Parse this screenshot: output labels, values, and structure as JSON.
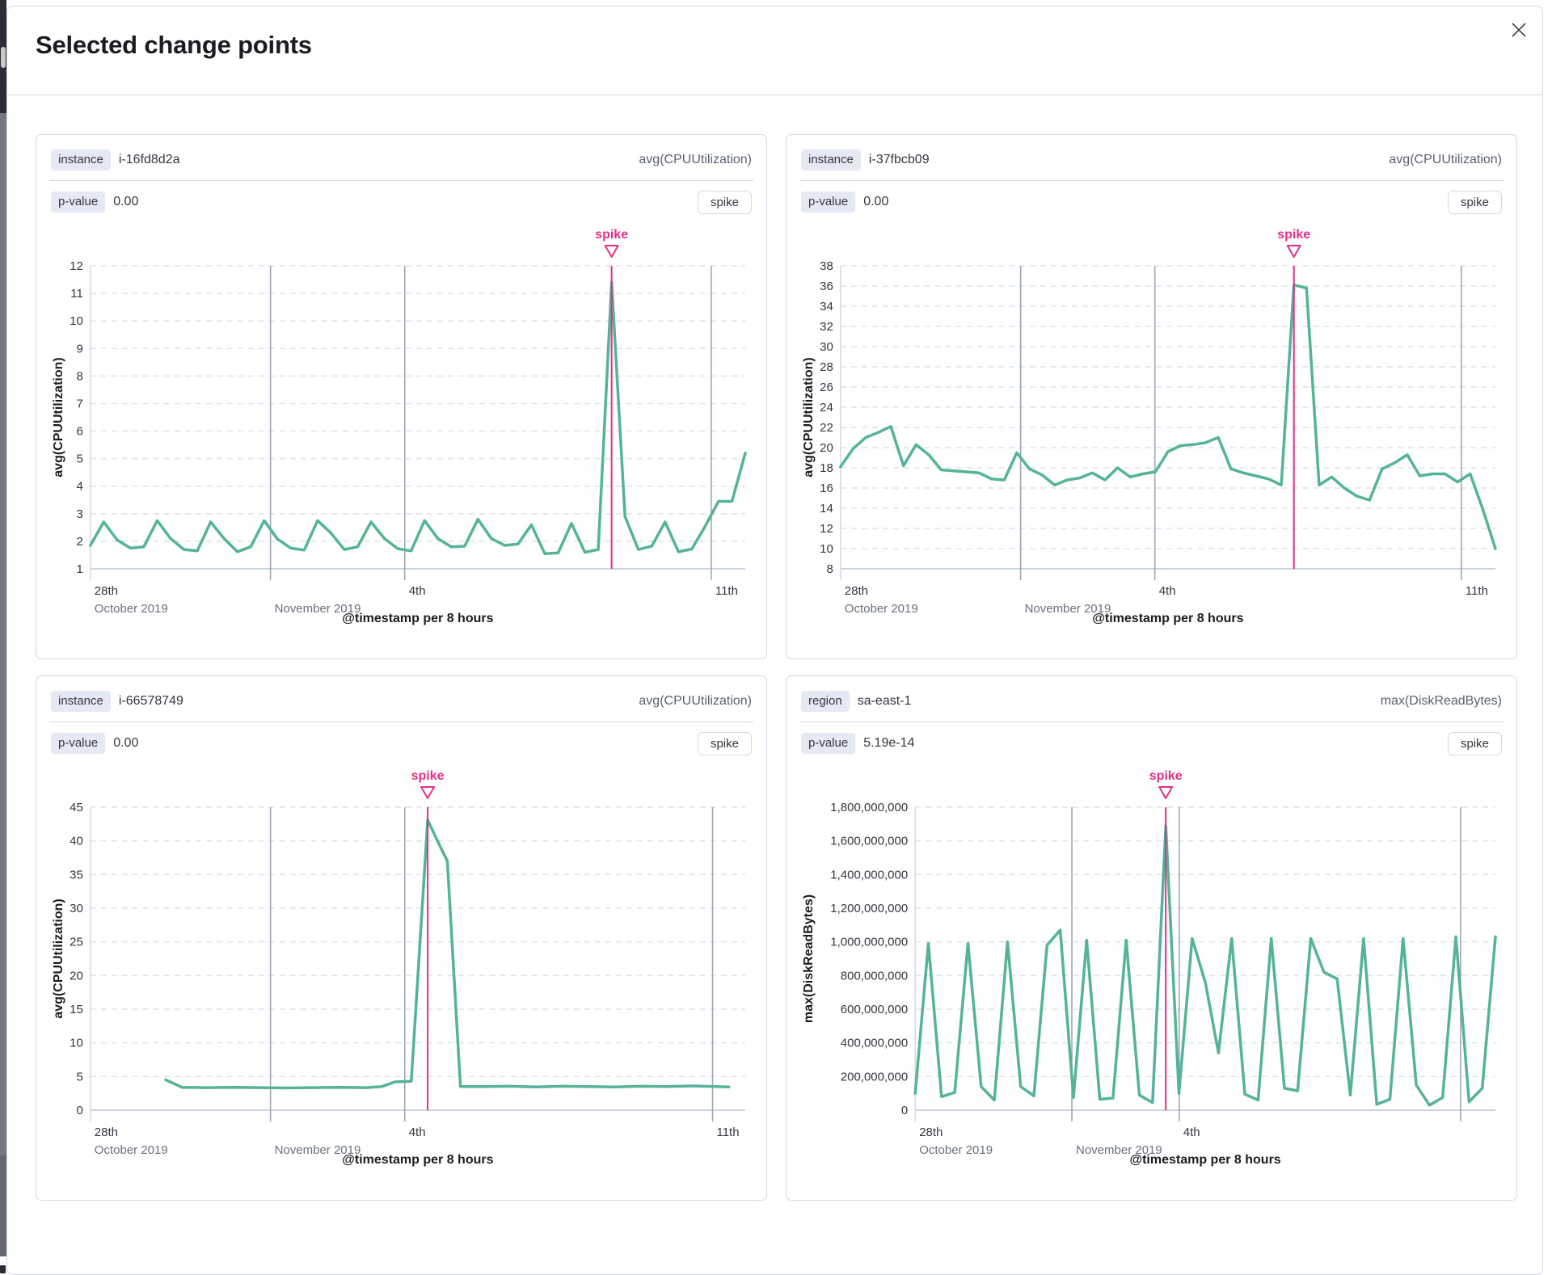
{
  "modal": {
    "title": "Selected change points"
  },
  "colors": {
    "line_green": "#54B399",
    "spike_pink": "#E2308A",
    "panel_border": "#D3DAE6",
    "badge_bg": "#E4E9F4",
    "text_dark": "#343741",
    "text_subdued": "#69707D",
    "gridline_dashed": "#dde2ec",
    "gridline_date": "#9aa1af",
    "gridline_edge": "#d3dae6",
    "baseline": "#cdd4e0"
  },
  "panels": [
    {
      "badge": "instance",
      "badge_value": "i-16fd8d2a",
      "metric": "avg(CPUUtilization)",
      "p_label": "p-value",
      "p_value": "0.00",
      "action": "spike",
      "chart_data": {
        "type": "line",
        "xlabel": "@timestamp per 8 hours",
        "ylabel": "avg(CPUUtilization)",
        "ylim": [
          1,
          12
        ],
        "yticks": [
          1,
          2,
          3,
          4,
          5,
          6,
          7,
          8,
          9,
          10,
          11,
          12
        ],
        "ytick_labels": [
          "1",
          "2",
          "3",
          "4",
          "5",
          "6",
          "7",
          "8",
          "9",
          "10",
          "11",
          "12"
        ],
        "x_axis": [
          {
            "x": 0,
            "label": "28th",
            "sublabel": "October 2019",
            "full_line": true,
            "edge": true
          },
          {
            "x": 0.275,
            "label": "",
            "sublabel": "November 2019",
            "full_line": true,
            "edge": false
          },
          {
            "x": 0.48,
            "label": "4th",
            "sublabel": "",
            "full_line": true,
            "edge": false
          },
          {
            "x": 0.948,
            "label": "11th",
            "sublabel": "",
            "full_line": true,
            "edge": false
          }
        ],
        "spike_annotation": "spike",
        "spike_index": 39,
        "values": [
          1.85,
          2.7,
          2.05,
          1.75,
          1.8,
          2.75,
          2.1,
          1.7,
          1.65,
          2.7,
          2.1,
          1.62,
          1.8,
          2.75,
          2.08,
          1.75,
          1.68,
          2.75,
          2.3,
          1.7,
          1.8,
          2.7,
          2.1,
          1.73,
          1.65,
          2.75,
          2.1,
          1.8,
          1.82,
          2.8,
          2.1,
          1.85,
          1.9,
          2.6,
          1.55,
          1.58,
          2.65,
          1.6,
          1.7,
          11.4,
          2.9,
          1.7,
          1.82,
          2.7,
          1.62,
          1.72,
          2.55,
          3.45,
          3.45,
          5.2
        ]
      }
    },
    {
      "badge": "instance",
      "badge_value": "i-37fbcb09",
      "metric": "avg(CPUUtilization)",
      "p_label": "p-value",
      "p_value": "0.00",
      "action": "spike",
      "chart_data": {
        "type": "line",
        "xlabel": "@timestamp per 8 hours",
        "ylabel": "avg(CPUUtilization)",
        "ylim": [
          8,
          38
        ],
        "yticks": [
          8,
          10,
          12,
          14,
          16,
          18,
          20,
          22,
          24,
          26,
          28,
          30,
          32,
          34,
          36,
          38
        ],
        "ytick_labels": [
          "8",
          "10",
          "12",
          "14",
          "16",
          "18",
          "20",
          "22",
          "24",
          "26",
          "28",
          "30",
          "32",
          "34",
          "36",
          "38"
        ],
        "x_axis": [
          {
            "x": 0,
            "label": "28th",
            "sublabel": "October 2019",
            "full_line": true,
            "edge": true
          },
          {
            "x": 0.275,
            "label": "",
            "sublabel": "November 2019",
            "full_line": true,
            "edge": false
          },
          {
            "x": 0.48,
            "label": "4th",
            "sublabel": "",
            "full_line": true,
            "edge": false
          },
          {
            "x": 0.948,
            "label": "11th",
            "sublabel": "",
            "full_line": true,
            "edge": false
          }
        ],
        "spike_annotation": "spike",
        "spike_index": 36,
        "values": [
          18.1,
          19.9,
          21.0,
          21.5,
          22.1,
          18.2,
          20.3,
          19.3,
          17.8,
          17.7,
          17.6,
          17.5,
          16.9,
          16.8,
          19.5,
          17.9,
          17.3,
          16.3,
          16.8,
          17.0,
          17.5,
          16.8,
          18.0,
          17.1,
          17.4,
          17.6,
          19.6,
          20.2,
          20.3,
          20.5,
          21.0,
          17.9,
          17.5,
          17.2,
          16.9,
          16.3,
          36.1,
          35.8,
          16.3,
          17.1,
          16.0,
          15.2,
          14.8,
          17.9,
          18.5,
          19.3,
          17.2,
          17.4,
          17.4,
          16.6,
          17.4,
          13.9,
          10.0
        ]
      }
    },
    {
      "badge": "instance",
      "badge_value": "i-66578749",
      "metric": "avg(CPUUtilization)",
      "p_label": "p-value",
      "p_value": "0.00",
      "action": "spike",
      "chart_data": {
        "type": "line",
        "xlabel": "@timestamp per 8 hours",
        "ylabel": "avg(CPUUtilization)",
        "ylim": [
          0,
          45
        ],
        "yticks": [
          0,
          5,
          10,
          15,
          20,
          25,
          30,
          35,
          40,
          45
        ],
        "ytick_labels": [
          "0",
          "5",
          "10",
          "15",
          "20",
          "25",
          "30",
          "35",
          "40",
          "45"
        ],
        "x_axis": [
          {
            "x": 0,
            "label": "28th",
            "sublabel": "October 2019",
            "full_line": true,
            "edge": true
          },
          {
            "x": 0.275,
            "label": "",
            "sublabel": "November 2019",
            "full_line": true,
            "edge": false
          },
          {
            "x": 0.48,
            "label": "4th",
            "sublabel": "",
            "full_line": true,
            "edge": false
          },
          {
            "x": 0.95,
            "label": "11th",
            "sublabel": "",
            "full_line": true,
            "edge": false
          }
        ],
        "spike_annotation": "spike",
        "spike_index": 12,
        "x": [
          0.115,
          0.14,
          0.175,
          0.22,
          0.26,
          0.3,
          0.34,
          0.38,
          0.42,
          0.445,
          0.465,
          0.49,
          0.515,
          0.53,
          0.545,
          0.565,
          0.6,
          0.64,
          0.68,
          0.72,
          0.76,
          0.8,
          0.84,
          0.88,
          0.92,
          0.955,
          0.975
        ],
        "values": [
          4.5,
          3.4,
          3.35,
          3.4,
          3.35,
          3.3,
          3.35,
          3.4,
          3.35,
          3.5,
          4.2,
          4.3,
          43.1,
          40.0,
          37.0,
          3.5,
          3.5,
          3.55,
          3.45,
          3.55,
          3.5,
          3.45,
          3.55,
          3.5,
          3.6,
          3.5,
          3.45
        ]
      }
    },
    {
      "badge": "region",
      "badge_value": "sa-east-1",
      "metric": "max(DiskReadBytes)",
      "p_label": "p-value",
      "p_value": "5.19e-14",
      "action": "spike",
      "chart_data": {
        "type": "line",
        "xlabel": "@timestamp per 8 hours",
        "ylabel": "max(DiskReadBytes)",
        "ylim": [
          0,
          1800000000
        ],
        "yticks": [
          0,
          200000000,
          400000000,
          600000000,
          800000000,
          1000000000,
          1200000000,
          1400000000,
          1600000000,
          1800000000
        ],
        "ytick_labels": [
          "0",
          "200,000,000",
          "400,000,000",
          "600,000,000",
          "800,000,000",
          "1,000,000,000",
          "1,200,000,000",
          "1,400,000,000",
          "1,600,000,000",
          "1,800,000,000"
        ],
        "x_axis": [
          {
            "x": 0,
            "label": "28th",
            "sublabel": "October 2019",
            "full_line": true,
            "edge": true
          },
          {
            "x": 0.27,
            "label": "",
            "sublabel": "November 2019",
            "full_line": true,
            "edge": false
          },
          {
            "x": 0.455,
            "label": "4th",
            "sublabel": "",
            "full_line": true,
            "edge": false
          },
          {
            "x": 0.94,
            "label": "",
            "sublabel": "",
            "full_line": true,
            "edge": false
          }
        ],
        "spike_annotation": "spike",
        "spike_index": 19,
        "values": [
          100000000,
          990000000,
          80000000,
          105000000,
          990000000,
          140000000,
          60000000,
          1000000000,
          140000000,
          85000000,
          980000000,
          1070000000,
          75000000,
          1010000000,
          65000000,
          72000000,
          1010000000,
          90000000,
          45000000,
          1690000000,
          100000000,
          1020000000,
          760000000,
          340000000,
          1020000000,
          95000000,
          60000000,
          1020000000,
          130000000,
          115000000,
          1020000000,
          820000000,
          780000000,
          90000000,
          1020000000,
          35000000,
          65000000,
          1020000000,
          150000000,
          30000000,
          75000000,
          1030000000,
          50000000,
          130000000,
          1030000000
        ]
      }
    }
  ]
}
